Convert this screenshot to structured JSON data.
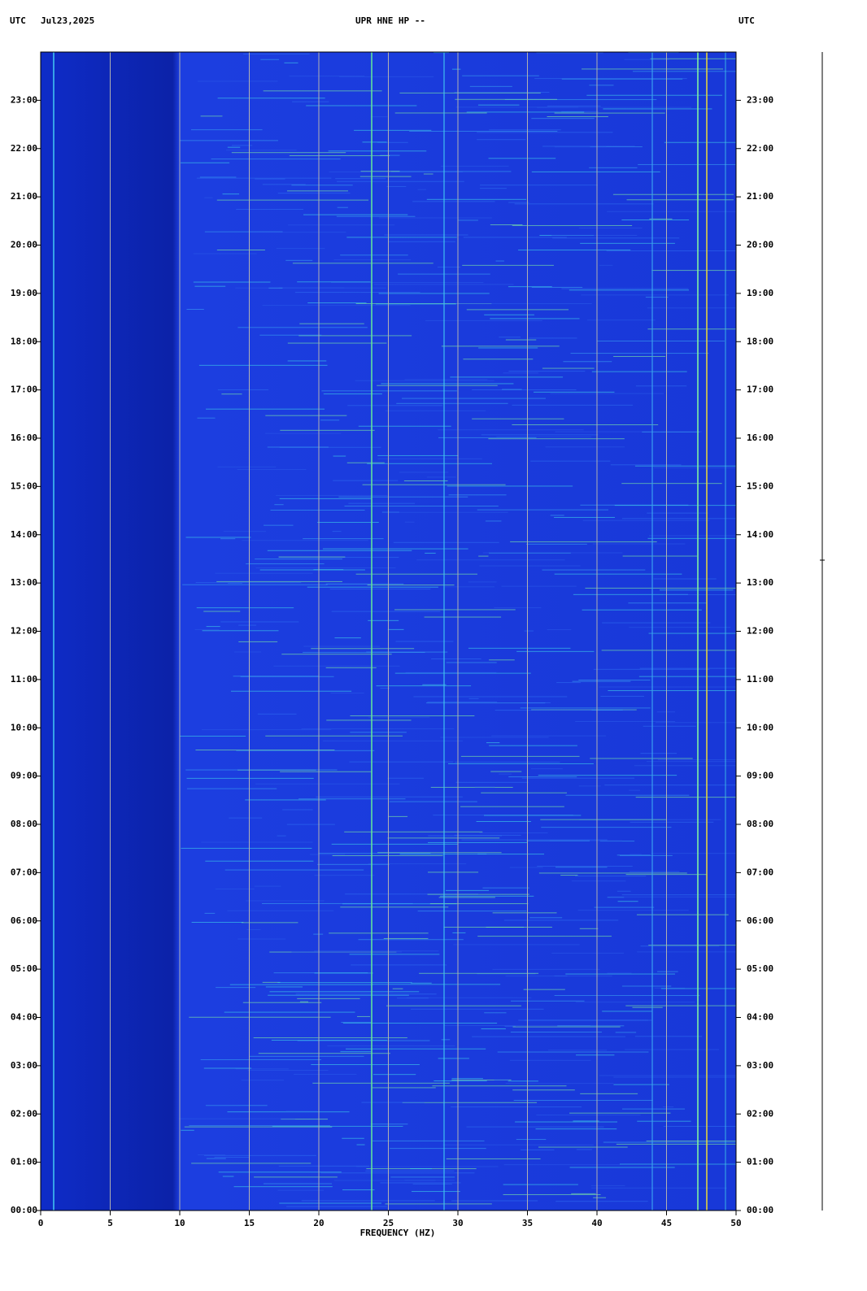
{
  "chart_data": {
    "type": "heatmap",
    "title": "UPR HNE HP --",
    "timezone_left": "UTC",
    "date": "Jul23,2025",
    "timezone_right": "UTC",
    "x_label": "FREQUENCY (HZ)",
    "xlim": [
      0,
      50
    ],
    "xticks": [
      0,
      5,
      10,
      15,
      20,
      25,
      30,
      35,
      40,
      45,
      50
    ],
    "ylim": [
      0,
      24
    ],
    "yticks": [
      {
        "value": 0,
        "label": "00:00"
      },
      {
        "value": 1,
        "label": "01:00"
      },
      {
        "value": 2,
        "label": "02:00"
      },
      {
        "value": 3,
        "label": "03:00"
      },
      {
        "value": 4,
        "label": "04:00"
      },
      {
        "value": 5,
        "label": "05:00"
      },
      {
        "value": 6,
        "label": "06:00"
      },
      {
        "value": 7,
        "label": "07:00"
      },
      {
        "value": 8,
        "label": "08:00"
      },
      {
        "value": 9,
        "label": "09:00"
      },
      {
        "value": 10,
        "label": "10:00"
      },
      {
        "value": 11,
        "label": "11:00"
      },
      {
        "value": 12,
        "label": "12:00"
      },
      {
        "value": 13,
        "label": "13:00"
      },
      {
        "value": 14,
        "label": "14:00"
      },
      {
        "value": 15,
        "label": "15:00"
      },
      {
        "value": 16,
        "label": "16:00"
      },
      {
        "value": 17,
        "label": "17:00"
      },
      {
        "value": 18,
        "label": "18:00"
      },
      {
        "value": 19,
        "label": "19:00"
      },
      {
        "value": 20,
        "label": "20:00"
      },
      {
        "value": 21,
        "label": "21:00"
      },
      {
        "value": 22,
        "label": "22:00"
      },
      {
        "value": 23,
        "label": "23:00"
      }
    ],
    "grid": true,
    "grid_color": "#b0b0b0"
  }
}
